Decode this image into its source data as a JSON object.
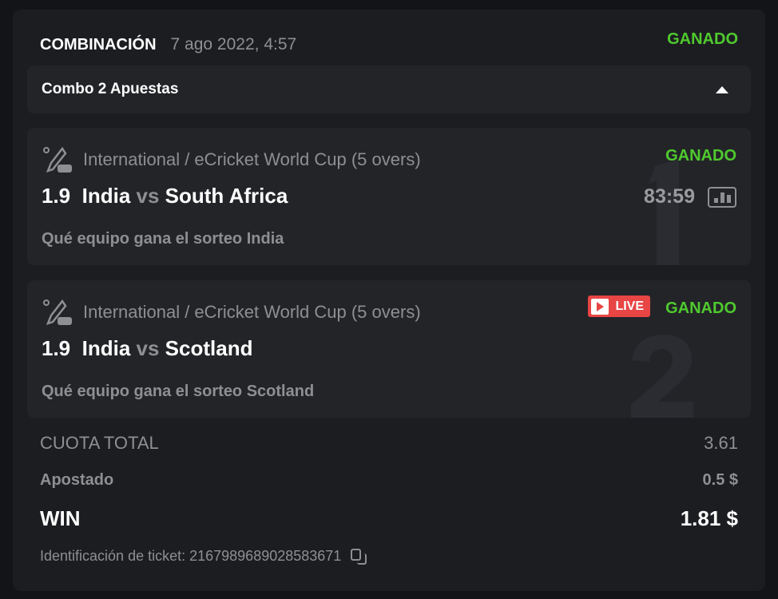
{
  "header": {
    "title": "COMBINACIÓN",
    "date": "7 ago 2022, 4:57",
    "status": "GANADO"
  },
  "combo": {
    "label": "Combo 2 Apuestas"
  },
  "bets": [
    {
      "number": "1",
      "league": "International / eCricket World Cup (5 overs)",
      "odds": "1.9",
      "team1": "India",
      "vs": "vs",
      "team2": "South Africa",
      "market": "Qué equipo gana el sorteo India",
      "status": "GANADO",
      "time": "83:59",
      "live": false
    },
    {
      "number": "2",
      "league": "International / eCricket World Cup (5 overs)",
      "odds": "1.9",
      "team1": "India",
      "vs": "vs",
      "team2": "Scotland",
      "market": "Qué equipo gana el sorteo Scotland",
      "status": "GANADO",
      "live_label": "LIVE",
      "live": true
    }
  ],
  "totals": {
    "odds_label": "CUOTA TOTAL",
    "odds_value": "3.61",
    "stake_label": "Apostado",
    "stake_value": "0.5 $",
    "win_label": "WIN",
    "win_value": "1.81 $"
  },
  "ticket": {
    "label": "Identificación de ticket: 2167989689028583671"
  },
  "colors": {
    "won": "#4fca2e",
    "live": "#e84545",
    "bg": "#1c1d21",
    "card": "#232428"
  }
}
